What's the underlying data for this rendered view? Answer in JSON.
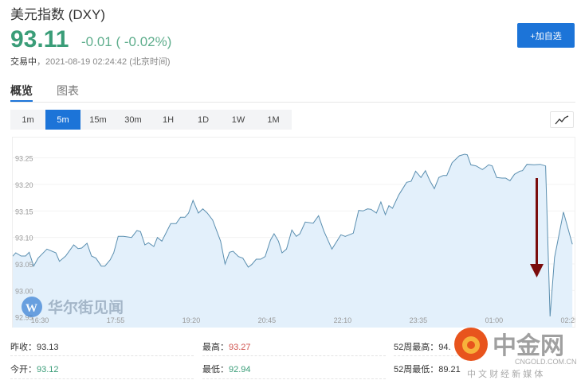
{
  "header": {
    "title": "美元指数 (DXY)",
    "price": "93.11",
    "change": "-0.01 ( -0.02%)",
    "status_label": "交易中",
    "status_time": "，2021-08-19 02:24:42 (北京时间)",
    "add_button": "+加自选"
  },
  "tabs": [
    {
      "label": "概览",
      "active": true
    },
    {
      "label": "图表",
      "active": false
    }
  ],
  "ranges": [
    {
      "label": "1m"
    },
    {
      "label": "5m",
      "active": true
    },
    {
      "label": "15m"
    },
    {
      "label": "30m"
    },
    {
      "label": "1H"
    },
    {
      "label": "1D"
    },
    {
      "label": "1W"
    },
    {
      "label": "1M"
    }
  ],
  "colors": {
    "accent": "#1c74d8",
    "up": "#d0534e",
    "down": "#3a9d78",
    "line": "#5b8fb0",
    "fill": "#e3f0fb",
    "arrow": "#7a0c0c"
  },
  "chart_data": {
    "type": "area",
    "ylim": [
      92.93,
      93.29
    ],
    "yticks": [
      "93.25",
      "93.20",
      "93.15",
      "93.10",
      "93.05",
      "93.00",
      "92.95"
    ],
    "xticks": [
      "16:30",
      "17:55",
      "19:20",
      "20:45",
      "22:10",
      "23:35",
      "01:00",
      "02:25"
    ],
    "grid": "horizontal",
    "x": [
      "15:59",
      "16:03",
      "16:09",
      "16:14",
      "16:18",
      "16:23",
      "16:28",
      "16:38",
      "16:48",
      "16:52",
      "16:59",
      "17:08",
      "17:13",
      "17:17",
      "17:23",
      "17:28",
      "17:33",
      "17:39",
      "17:43",
      "17:49",
      "17:53",
      "17:58",
      "18:04",
      "18:13",
      "18:19",
      "18:23",
      "18:28",
      "18:32",
      "18:38",
      "18:42",
      "18:47",
      "18:57",
      "19:03",
      "19:08",
      "19:13",
      "19:17",
      "19:22",
      "19:28",
      "19:33",
      "19:38",
      "19:44",
      "19:53",
      "19:58",
      "20:03",
      "20:07",
      "20:13",
      "20:18",
      "20:24",
      "20:28",
      "20:33",
      "20:38",
      "20:43",
      "20:49",
      "20:53",
      "20:58",
      "21:02",
      "21:07",
      "21:13",
      "21:18",
      "21:22",
      "21:28",
      "21:37",
      "21:43",
      "21:49",
      "21:58",
      "22:08",
      "22:13",
      "22:22",
      "22:28",
      "22:33",
      "22:38",
      "22:42",
      "22:48",
      "22:53",
      "22:58",
      "23:02",
      "23:06",
      "23:13",
      "23:22",
      "23:27",
      "23:32",
      "23:38",
      "23:43",
      "23:48",
      "23:53",
      "23:58",
      "00:03",
      "00:07",
      "00:13",
      "00:21",
      "00:27",
      "00:30",
      "00:34",
      "00:40",
      "00:47",
      "00:51",
      "00:54",
      "00:58",
      "01:03",
      "01:09",
      "01:13",
      "01:18",
      "01:23",
      "01:29",
      "01:32",
      "01:37",
      "01:45",
      "01:52",
      "01:58",
      "02:03",
      "02:08",
      "02:18",
      "02:28"
    ],
    "y": [
      93.064,
      93.071,
      93.065,
      93.065,
      93.072,
      93.046,
      93.061,
      93.078,
      93.071,
      93.055,
      93.065,
      93.086,
      93.079,
      93.08,
      93.089,
      93.065,
      93.061,
      93.046,
      93.046,
      93.058,
      93.071,
      93.102,
      93.102,
      93.1,
      93.113,
      93.111,
      93.086,
      93.09,
      93.083,
      93.1,
      93.093,
      93.126,
      93.126,
      93.138,
      93.138,
      93.146,
      93.17,
      93.146,
      93.154,
      93.146,
      93.133,
      93.093,
      93.05,
      93.072,
      93.074,
      93.064,
      93.061,
      93.044,
      93.049,
      93.059,
      93.059,
      93.064,
      93.095,
      93.107,
      93.093,
      93.071,
      93.078,
      93.114,
      93.102,
      93.107,
      93.129,
      93.127,
      93.141,
      93.112,
      93.078,
      93.105,
      93.102,
      93.108,
      93.151,
      93.15,
      93.154,
      93.153,
      93.146,
      93.167,
      93.143,
      93.16,
      93.155,
      93.18,
      93.204,
      93.206,
      93.225,
      93.213,
      93.226,
      93.207,
      93.192,
      93.213,
      93.217,
      93.217,
      93.241,
      93.254,
      93.257,
      93.256,
      93.237,
      93.235,
      93.228,
      93.233,
      93.237,
      93.235,
      93.213,
      93.212,
      93.212,
      93.207,
      93.219,
      93.225,
      93.226,
      93.238,
      93.237,
      93.238,
      93.235,
      92.951,
      93.062,
      93.148,
      93.087
    ]
  },
  "watermarks": {
    "left": "华尔街见闻",
    "right_title": "中金网",
    "right_domain": "CNGOLD.COM.CN",
    "right_slogan": "中 文 财 经 新 媒 体"
  },
  "stats": [
    {
      "label": "昨收：",
      "value": "93.13",
      "color": ""
    },
    {
      "label": "最高：",
      "value": "93.27",
      "color": "red"
    },
    {
      "label": "52周最高：",
      "value": "94.",
      "color": ""
    },
    {
      "label": "今开：",
      "value": "93.12",
      "color": "green"
    },
    {
      "label": "最低：",
      "value": "92.94",
      "color": "green"
    },
    {
      "label": "52周最低：",
      "value": "89.21",
      "color": ""
    }
  ]
}
